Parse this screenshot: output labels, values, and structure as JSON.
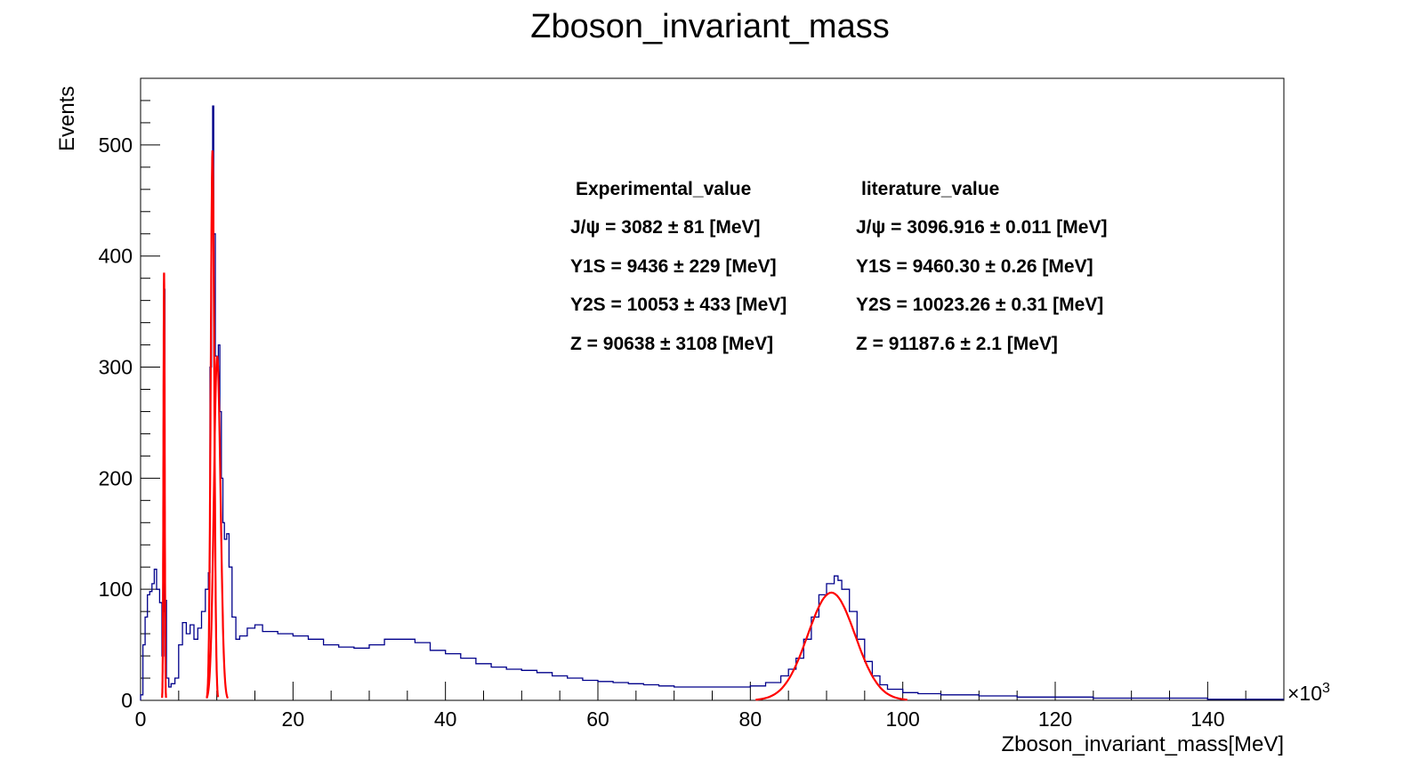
{
  "chart_data": {
    "type": "histogram",
    "title": "Zboson_invariant_mass",
    "xlabel": "Zboson_invariant_mass[MeV]",
    "ylabel": "Events",
    "x_multiplier_label": "×10",
    "x_multiplier_exp": "3",
    "xlim": [
      0,
      150
    ],
    "ylim": [
      0,
      560
    ],
    "x_unit_scale": 1000,
    "x_ticks": [
      0,
      20,
      40,
      60,
      80,
      100,
      120,
      140
    ],
    "y_ticks": [
      0,
      100,
      200,
      300,
      400,
      500
    ],
    "grid": false,
    "colors": {
      "histogram": "#00008b",
      "fit": "#ff0000"
    },
    "histogram_points": [
      [
        0,
        5
      ],
      [
        0.3,
        50
      ],
      [
        0.6,
        75
      ],
      [
        0.9,
        95
      ],
      [
        1.2,
        98
      ],
      [
        1.5,
        105
      ],
      [
        1.8,
        118
      ],
      [
        2.1,
        100
      ],
      [
        2.5,
        88
      ],
      [
        2.8,
        40
      ],
      [
        3.0,
        80
      ],
      [
        3.1,
        370
      ],
      [
        3.2,
        90
      ],
      [
        3.4,
        20
      ],
      [
        3.7,
        12
      ],
      [
        4.0,
        15
      ],
      [
        4.5,
        20
      ],
      [
        5.0,
        50
      ],
      [
        5.5,
        70
      ],
      [
        6.0,
        60
      ],
      [
        6.5,
        68
      ],
      [
        7.0,
        55
      ],
      [
        7.5,
        65
      ],
      [
        8.0,
        80
      ],
      [
        8.5,
        100
      ],
      [
        8.9,
        115
      ],
      [
        9.1,
        300
      ],
      [
        9.3,
        450
      ],
      [
        9.45,
        535
      ],
      [
        9.6,
        420
      ],
      [
        9.8,
        310
      ],
      [
        10.0,
        300
      ],
      [
        10.2,
        320
      ],
      [
        10.4,
        260
      ],
      [
        10.6,
        200
      ],
      [
        10.8,
        160
      ],
      [
        11.0,
        145
      ],
      [
        11.3,
        150
      ],
      [
        11.6,
        120
      ],
      [
        12.0,
        75
      ],
      [
        12.5,
        55
      ],
      [
        13.0,
        58
      ],
      [
        14.0,
        65
      ],
      [
        15.0,
        68
      ],
      [
        16.0,
        62
      ],
      [
        18.0,
        60
      ],
      [
        20.0,
        58
      ],
      [
        22.0,
        55
      ],
      [
        24.0,
        50
      ],
      [
        26.0,
        48
      ],
      [
        28.0,
        47
      ],
      [
        30.0,
        50
      ],
      [
        32.0,
        55
      ],
      [
        34.0,
        55
      ],
      [
        36.0,
        52
      ],
      [
        38.0,
        45
      ],
      [
        40.0,
        42
      ],
      [
        42.0,
        38
      ],
      [
        44.0,
        33
      ],
      [
        46.0,
        30
      ],
      [
        48.0,
        28
      ],
      [
        50.0,
        27
      ],
      [
        52.0,
        25
      ],
      [
        54.0,
        22
      ],
      [
        56.0,
        20
      ],
      [
        58.0,
        18
      ],
      [
        60.0,
        17
      ],
      [
        62.0,
        16
      ],
      [
        64.0,
        15
      ],
      [
        66.0,
        14
      ],
      [
        68.0,
        13
      ],
      [
        70.0,
        12
      ],
      [
        72.0,
        12
      ],
      [
        74.0,
        12
      ],
      [
        76.0,
        12
      ],
      [
        78.0,
        12
      ],
      [
        80.0,
        13
      ],
      [
        82.0,
        16
      ],
      [
        84.0,
        22
      ],
      [
        85.0,
        28
      ],
      [
        86.0,
        38
      ],
      [
        87.0,
        55
      ],
      [
        88.0,
        75
      ],
      [
        89.0,
        95
      ],
      [
        90.0,
        105
      ],
      [
        91.0,
        112
      ],
      [
        91.5,
        108
      ],
      [
        92.0,
        100
      ],
      [
        93.0,
        80
      ],
      [
        94.0,
        55
      ],
      [
        95.0,
        35
      ],
      [
        96.0,
        22
      ],
      [
        97.0,
        14
      ],
      [
        98.0,
        10
      ],
      [
        100.0,
        7
      ],
      [
        102.0,
        6
      ],
      [
        105.0,
        5
      ],
      [
        110.0,
        4
      ],
      [
        115.0,
        3
      ],
      [
        120.0,
        3
      ],
      [
        125.0,
        2
      ],
      [
        130.0,
        2
      ],
      [
        140.0,
        1
      ],
      [
        150.0,
        1
      ]
    ],
    "fits": [
      {
        "peak": "J/psi",
        "mean": 3.082,
        "sigma": 0.081,
        "amplitude": 385
      },
      {
        "peak": "Y1S",
        "mean": 9.436,
        "sigma": 0.229,
        "amplitude": 495
      },
      {
        "peak": "Y2S",
        "mean": 10.053,
        "sigma": 0.433,
        "amplitude": 310
      },
      {
        "peak": "Z",
        "mean": 90.638,
        "sigma": 3.108,
        "amplitude": 97
      }
    ],
    "annotations": {
      "experimental_header": "Experimental_value",
      "literature_header": "literature_value",
      "experimental": [
        "J/ψ = 3082 ± 81 [MeV]",
        "Y1S = 9436 ± 229 [MeV]",
        "Y2S = 10053 ± 433 [MeV]",
        "Z = 90638 ± 3108 [MeV]"
      ],
      "literature": [
        "J/ψ = 3096.916 ± 0.011 [MeV]",
        "Y1S = 9460.30 ± 0.26 [MeV]",
        "Y2S = 10023.26 ± 0.31 [MeV]",
        "Z = 91187.6 ± 2.1 [MeV]"
      ]
    }
  }
}
